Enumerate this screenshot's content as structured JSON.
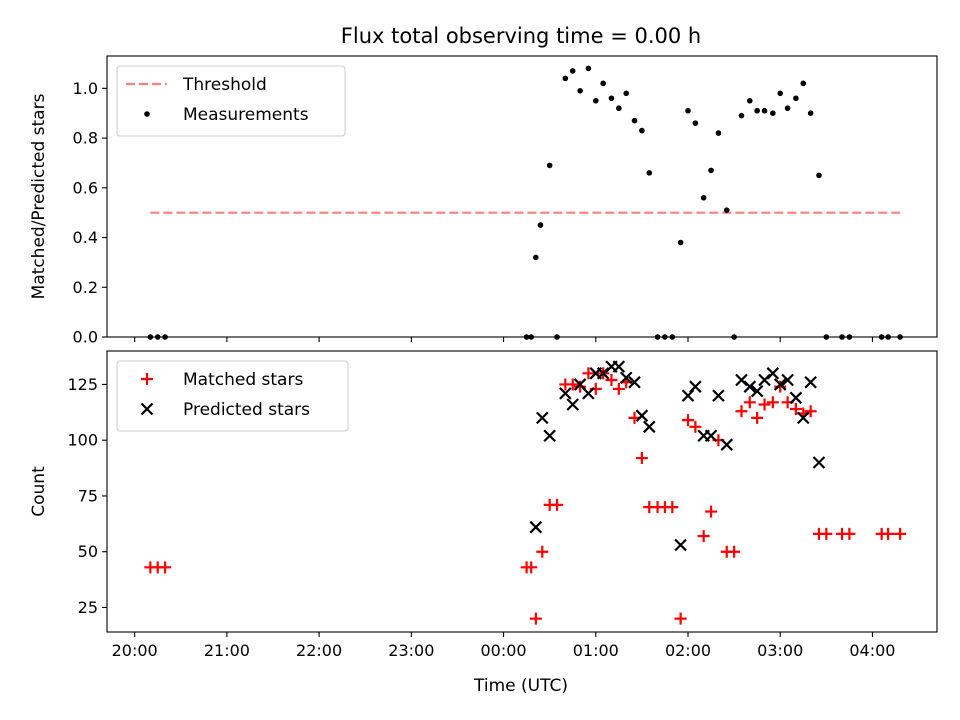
{
  "chart_data": {
    "title": "Flux total observing time = 0.00 h",
    "xlabel": "Time (UTC)",
    "x_unit": "hours UTC (24 = 00:00 next day)",
    "xlim": [
      19.7,
      28.7
    ],
    "x_ticks": [
      {
        "value": 20,
        "label": "20:00"
      },
      {
        "value": 21,
        "label": "21:00"
      },
      {
        "value": 22,
        "label": "22:00"
      },
      {
        "value": 23,
        "label": "23:00"
      },
      {
        "value": 24,
        "label": "00:00"
      },
      {
        "value": 25,
        "label": "01:00"
      },
      {
        "value": 26,
        "label": "02:00"
      },
      {
        "value": 27,
        "label": "03:00"
      },
      {
        "value": 28,
        "label": "04:00"
      }
    ],
    "panels": [
      {
        "type": "scatter",
        "ylabel": "Matched/Predicted stars",
        "ylim": [
          0,
          1.13
        ],
        "yticks": [
          {
            "value": 0.0,
            "label": "0.0"
          },
          {
            "value": 0.2,
            "label": "0.2"
          },
          {
            "value": 0.4,
            "label": "0.4"
          },
          {
            "value": 0.6,
            "label": "0.6"
          },
          {
            "value": 0.8,
            "label": "0.8"
          },
          {
            "value": 1.0,
            "label": "1.0"
          }
        ],
        "legend_position": "top-left",
        "threshold": {
          "name": "Threshold",
          "value": 0.5,
          "x_start": 20.17,
          "x_end": 28.3,
          "color": "#ff7f7f"
        },
        "series": [
          {
            "name": "Measurements",
            "marker": "dot",
            "color": "#000000",
            "x": [
              20.17,
              20.25,
              20.33,
              24.25,
              24.3,
              24.35,
              24.4,
              24.5,
              24.58,
              24.67,
              24.75,
              24.83,
              24.92,
              25.0,
              25.08,
              25.17,
              25.25,
              25.33,
              25.42,
              25.5,
              25.58,
              25.67,
              25.75,
              25.83,
              25.92,
              26.0,
              26.08,
              26.17,
              26.25,
              26.33,
              26.42,
              26.5,
              26.58,
              26.67,
              26.75,
              26.83,
              26.92,
              27.0,
              27.08,
              27.17,
              27.25,
              27.33,
              27.42,
              27.5,
              27.67,
              27.75,
              28.1,
              28.17,
              28.3
            ],
            "y": [
              0.0,
              0.0,
              0.0,
              0.0,
              0.0,
              0.32,
              0.45,
              0.69,
              0.0,
              1.04,
              1.07,
              0.99,
              1.08,
              0.95,
              1.02,
              0.96,
              0.92,
              0.98,
              0.87,
              0.83,
              0.66,
              0.0,
              0.0,
              0.0,
              0.38,
              0.91,
              0.86,
              0.56,
              0.67,
              0.82,
              0.51,
              0.0,
              0.89,
              0.95,
              0.91,
              0.91,
              0.9,
              0.98,
              0.92,
              0.96,
              1.02,
              0.9,
              0.65,
              0.0,
              0.0,
              0.0,
              0.0,
              0.0,
              0.0
            ]
          }
        ]
      },
      {
        "type": "scatter",
        "ylabel": "Count",
        "ylim": [
          14,
          140
        ],
        "yticks": [
          {
            "value": 25,
            "label": "25"
          },
          {
            "value": 50,
            "label": "50"
          },
          {
            "value": 75,
            "label": "75"
          },
          {
            "value": 100,
            "label": "100"
          },
          {
            "value": 125,
            "label": "125"
          }
        ],
        "legend_position": "top-left",
        "series": [
          {
            "name": "Matched stars",
            "marker": "plus",
            "color": "#ff0000",
            "x": [
              20.17,
              20.25,
              20.33,
              24.25,
              24.3,
              24.35,
              24.42,
              24.5,
              24.58,
              24.67,
              24.75,
              24.83,
              24.92,
              25.0,
              25.08,
              25.17,
              25.25,
              25.33,
              25.42,
              25.5,
              25.58,
              25.67,
              25.75,
              25.83,
              25.92,
              26.0,
              26.08,
              26.17,
              26.25,
              26.33,
              26.42,
              26.5,
              26.58,
              26.67,
              26.75,
              26.83,
              26.92,
              27.0,
              27.08,
              27.17,
              27.25,
              27.33,
              27.42,
              27.5,
              27.67,
              27.75,
              28.1,
              28.17,
              28.3
            ],
            "y": [
              43,
              43,
              43,
              43,
              43,
              20,
              50,
              71,
              71,
              125,
              125,
              124,
              130,
              123,
              130,
              127,
              123,
              126,
              110,
              92,
              70,
              70,
              70,
              70,
              20,
              109,
              106,
              57,
              68,
              100,
              50,
              50,
              113,
              117,
              110,
              116,
              117,
              124,
              117,
              114,
              112,
              113,
              58,
              58,
              58,
              58,
              58,
              58,
              58
            ]
          },
          {
            "name": "Predicted stars",
            "marker": "x",
            "color": "#000000",
            "x": [
              24.35,
              24.42,
              24.5,
              24.67,
              24.75,
              24.83,
              24.92,
              25.0,
              25.08,
              25.17,
              25.25,
              25.33,
              25.42,
              25.5,
              25.58,
              25.92,
              26.0,
              26.08,
              26.17,
              26.25,
              26.33,
              26.42,
              26.58,
              26.67,
              26.75,
              26.83,
              26.92,
              27.0,
              27.08,
              27.17,
              27.25,
              27.33,
              27.42
            ],
            "y": [
              61,
              110,
              102,
              121,
              116,
              125,
              121,
              130,
              130,
              133,
              133,
              128,
              126,
              111,
              106,
              53,
              120,
              124,
              102,
              102,
              120,
              98,
              127,
              124,
              122,
              127,
              130,
              125,
              127,
              119,
              110,
              126,
              90
            ]
          }
        ]
      }
    ]
  }
}
